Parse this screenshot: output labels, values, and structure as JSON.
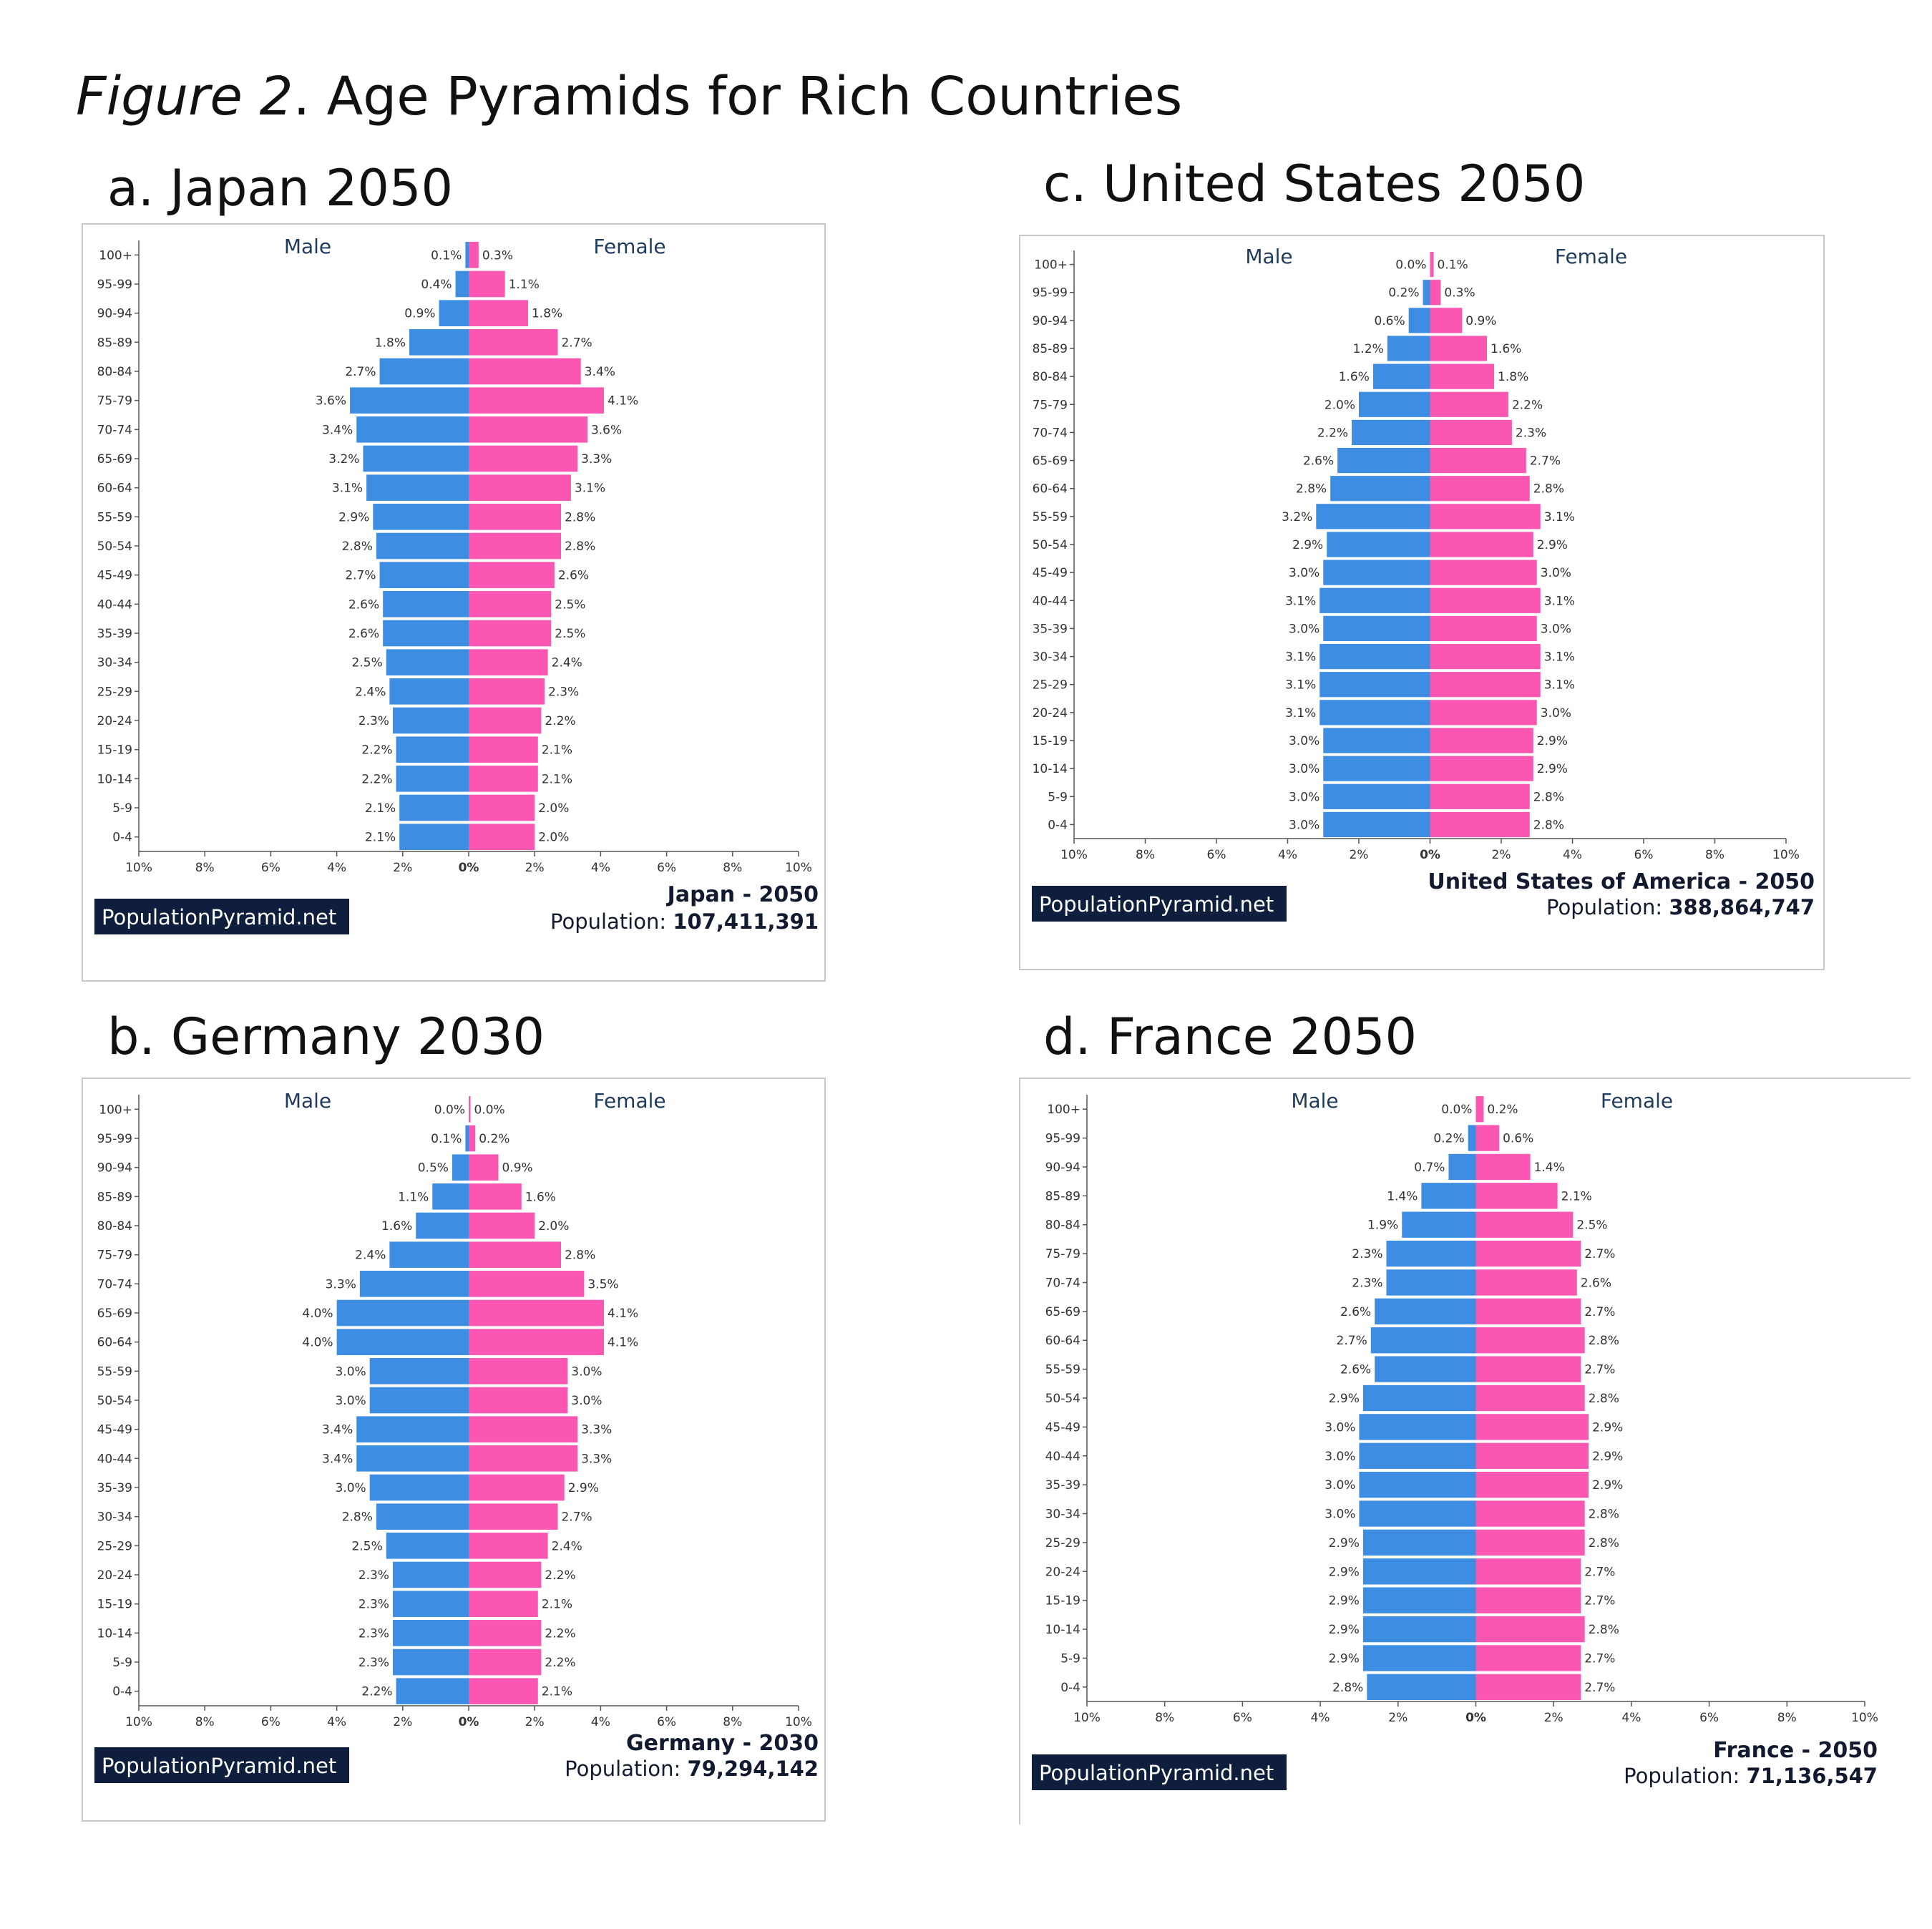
{
  "figure": {
    "title_italic": "Figure 2",
    "title_rest": ". Age Pyramids for Rich Countries"
  },
  "colors": {
    "male": "#3d8ee3",
    "female": "#fb57b2",
    "dark": "#0f1e3c"
  },
  "chart_data": [
    {
      "type": "bar",
      "panel_title": "a. Japan 2050",
      "male_label": "Male",
      "female_label": "Female",
      "categories": [
        "100+",
        "95-99",
        "90-94",
        "85-89",
        "80-84",
        "75-79",
        "70-74",
        "65-69",
        "60-64",
        "55-59",
        "50-54",
        "45-49",
        "40-44",
        "35-39",
        "30-34",
        "25-29",
        "20-24",
        "15-19",
        "10-14",
        "5-9",
        "0-4"
      ],
      "series": [
        {
          "name": "Male",
          "values": [
            0.1,
            0.4,
            0.9,
            1.8,
            2.7,
            3.6,
            3.4,
            3.2,
            3.1,
            2.9,
            2.8,
            2.7,
            2.6,
            2.6,
            2.5,
            2.4,
            2.3,
            2.2,
            2.2,
            2.1,
            2.1
          ]
        },
        {
          "name": "Female",
          "values": [
            0.3,
            1.1,
            1.8,
            2.7,
            3.4,
            4.1,
            3.6,
            3.3,
            3.1,
            2.8,
            2.8,
            2.6,
            2.5,
            2.5,
            2.4,
            2.3,
            2.2,
            2.1,
            2.1,
            2.0,
            2.0
          ]
        }
      ],
      "x_ticks": [
        "10%",
        "8%",
        "6%",
        "4%",
        "2%",
        "0%",
        "2%",
        "4%",
        "6%",
        "8%",
        "10%"
      ],
      "xlim": [
        -10,
        10
      ],
      "logo": "PopulationPyramid.net",
      "caption": "Japan - 2050",
      "population_label": "Population: ",
      "population": "107,411,391"
    },
    {
      "type": "bar",
      "panel_title": "c. United States 2050",
      "male_label": "Male",
      "female_label": "Female",
      "categories": [
        "100+",
        "95-99",
        "90-94",
        "85-89",
        "80-84",
        "75-79",
        "70-74",
        "65-69",
        "60-64",
        "55-59",
        "50-54",
        "45-49",
        "40-44",
        "35-39",
        "30-34",
        "25-29",
        "20-24",
        "15-19",
        "10-14",
        "5-9",
        "0-4"
      ],
      "series": [
        {
          "name": "Male",
          "values": [
            0.0,
            0.2,
            0.6,
            1.2,
            1.6,
            2.0,
            2.2,
            2.6,
            2.8,
            3.2,
            2.9,
            3.0,
            3.1,
            3.0,
            3.1,
            3.1,
            3.1,
            3.0,
            3.0,
            3.0,
            3.0
          ]
        },
        {
          "name": "Female",
          "values": [
            0.1,
            0.3,
            0.9,
            1.6,
            1.8,
            2.2,
            2.3,
            2.7,
            2.8,
            3.1,
            2.9,
            3.0,
            3.1,
            3.0,
            3.1,
            3.1,
            3.0,
            2.9,
            2.9,
            2.8,
            2.8
          ]
        }
      ],
      "x_ticks": [
        "10%",
        "8%",
        "6%",
        "4%",
        "2%",
        "0%",
        "2%",
        "4%",
        "6%",
        "8%",
        "10%"
      ],
      "xlim": [
        -10,
        10
      ],
      "logo": "PopulationPyramid.net",
      "caption": "United States of America - 2050",
      "population_label": "Population: ",
      "population": "388,864,747"
    },
    {
      "type": "bar",
      "panel_title": "b. Germany 2030",
      "male_label": "Male",
      "female_label": "Female",
      "categories": [
        "100+",
        "95-99",
        "90-94",
        "85-89",
        "80-84",
        "75-79",
        "70-74",
        "65-69",
        "60-64",
        "55-59",
        "50-54",
        "45-49",
        "40-44",
        "35-39",
        "30-34",
        "25-29",
        "20-24",
        "15-19",
        "10-14",
        "5-9",
        "0-4"
      ],
      "series": [
        {
          "name": "Male",
          "values": [
            0.0,
            0.1,
            0.5,
            1.1,
            1.6,
            2.4,
            3.3,
            4.0,
            4.0,
            3.0,
            3.0,
            3.4,
            3.4,
            3.0,
            2.8,
            2.5,
            2.3,
            2.3,
            2.3,
            2.3,
            2.2
          ]
        },
        {
          "name": "Female",
          "values": [
            0.0,
            0.2,
            0.9,
            1.6,
            2.0,
            2.8,
            3.5,
            4.1,
            4.1,
            3.0,
            3.0,
            3.3,
            3.3,
            2.9,
            2.7,
            2.4,
            2.2,
            2.1,
            2.2,
            2.2,
            2.1
          ]
        }
      ],
      "x_ticks": [
        "10%",
        "8%",
        "6%",
        "4%",
        "2%",
        "0%",
        "2%",
        "4%",
        "6%",
        "8%",
        "10%"
      ],
      "xlim": [
        -10,
        10
      ],
      "logo": "PopulationPyramid.net",
      "caption": "Germany - 2030",
      "population_label": "Population: ",
      "population": "79,294,142"
    },
    {
      "type": "bar",
      "panel_title": "d. France 2050",
      "male_label": "Male",
      "female_label": "Female",
      "categories": [
        "100+",
        "95-99",
        "90-94",
        "85-89",
        "80-84",
        "75-79",
        "70-74",
        "65-69",
        "60-64",
        "55-59",
        "50-54",
        "45-49",
        "40-44",
        "35-39",
        "30-34",
        "25-29",
        "20-24",
        "15-19",
        "10-14",
        "5-9",
        "0-4"
      ],
      "series": [
        {
          "name": "Male",
          "values": [
            0.0,
            0.2,
            0.7,
            1.4,
            1.9,
            2.3,
            2.3,
            2.6,
            2.7,
            2.6,
            2.9,
            3.0,
            3.0,
            3.0,
            3.0,
            2.9,
            2.9,
            2.9,
            2.9,
            2.9,
            2.8
          ]
        },
        {
          "name": "Female",
          "values": [
            0.2,
            0.6,
            1.4,
            2.1,
            2.5,
            2.7,
            2.6,
            2.7,
            2.8,
            2.7,
            2.8,
            2.9,
            2.9,
            2.9,
            2.8,
            2.8,
            2.7,
            2.7,
            2.8,
            2.7,
            2.7
          ]
        }
      ],
      "x_ticks": [
        "10%",
        "8%",
        "6%",
        "4%",
        "2%",
        "0%",
        "2%",
        "4%",
        "6%",
        "8%",
        "10%"
      ],
      "xlim": [
        -10,
        10
      ],
      "logo": "PopulationPyramid.net",
      "caption": "France - 2050",
      "population_label": "Population: ",
      "population": "71,136,547"
    }
  ]
}
